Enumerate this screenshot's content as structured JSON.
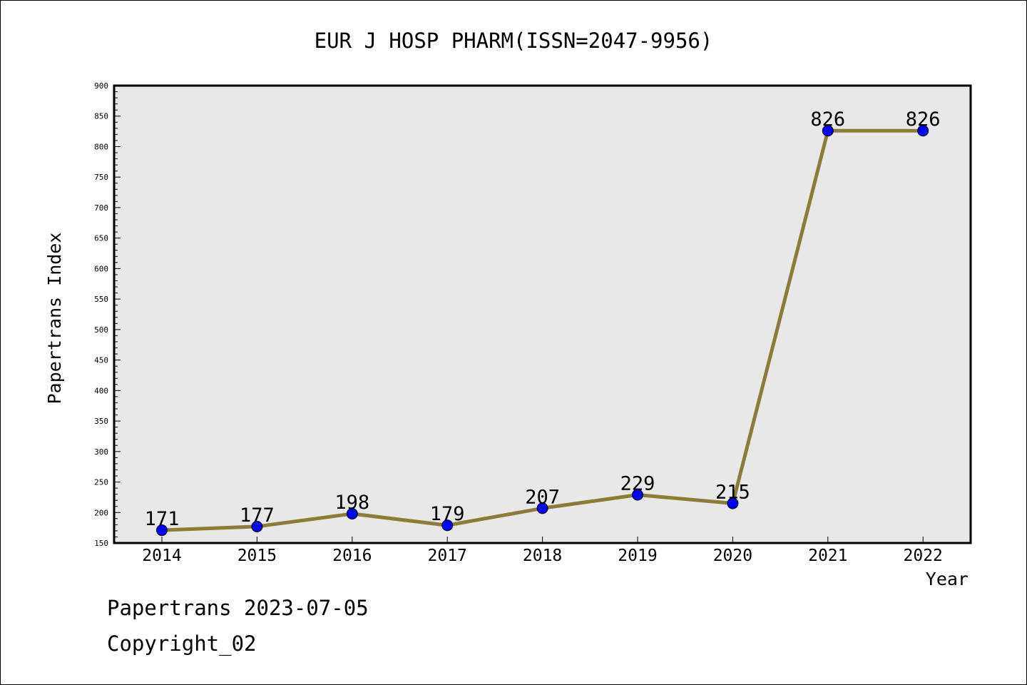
{
  "footer": {
    "line1": "Papertrans 2023-07-05",
    "line2": "Copyright_02"
  },
  "chart_data": {
    "type": "line",
    "title": "EUR J HOSP PHARM(ISSN=2047-9956)",
    "xlabel": "Year",
    "ylabel": "Papertrans Index",
    "categories": [
      "2014",
      "2015",
      "2016",
      "2017",
      "2018",
      "2019",
      "2020",
      "2021",
      "2022"
    ],
    "values": [
      171,
      177,
      198,
      179,
      207,
      229,
      215,
      826,
      826
    ],
    "data_labels": [
      "171",
      "177",
      "198",
      "179",
      "207",
      "229",
      "215",
      "826",
      "826"
    ],
    "ylim": [
      150,
      900
    ],
    "yticks": [
      150,
      200,
      250,
      300,
      350,
      400,
      450,
      500,
      550,
      600,
      650,
      700,
      750,
      800,
      850,
      900
    ],
    "ytick_labels": [
      "150",
      "200",
      "250",
      "300",
      "350",
      "400",
      "450",
      "500",
      "550",
      "600",
      "650",
      "700",
      "750",
      "800",
      "850",
      "900"
    ],
    "grid": false,
    "line_color": "#8c7d36",
    "marker_color": "#0000ff",
    "plot_background": "#e8e8e8"
  }
}
